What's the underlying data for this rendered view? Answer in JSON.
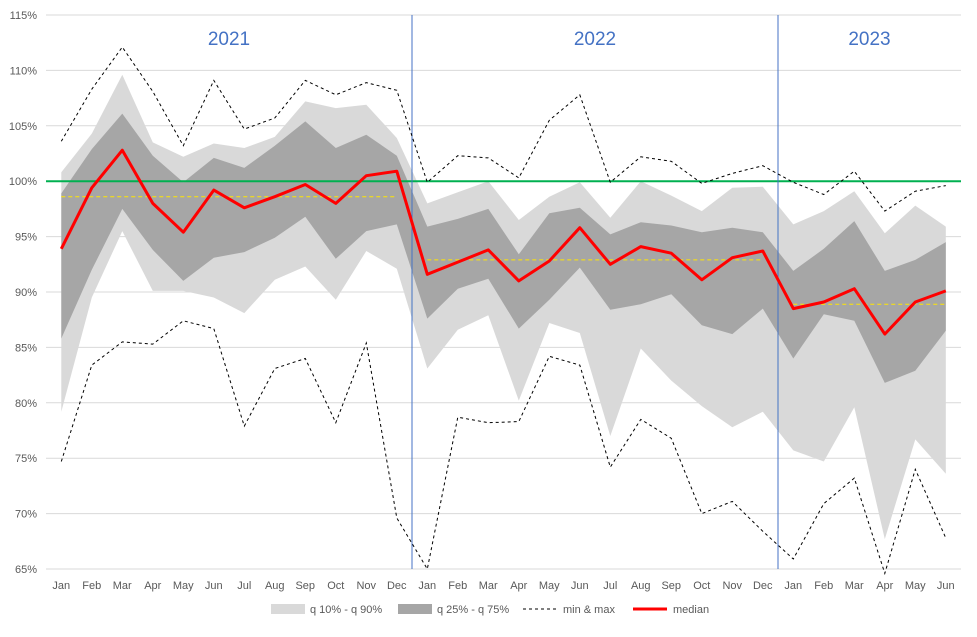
{
  "chart_data": {
    "type": "area",
    "x": [
      "Jan",
      "Feb",
      "Mar",
      "Apr",
      "May",
      "Jun",
      "Jul",
      "Aug",
      "Sep",
      "Oct",
      "Nov",
      "Dec",
      "Jan",
      "Feb",
      "Mar",
      "Apr",
      "May",
      "Jun",
      "Jul",
      "Aug",
      "Sep",
      "Oct",
      "Nov",
      "Dec",
      "Jan",
      "Feb",
      "Mar",
      "Apr",
      "May",
      "Jun"
    ],
    "year_labels": [
      {
        "label": "2021",
        "start": 0,
        "end": 11
      },
      {
        "label": "2022",
        "start": 12,
        "end": 23
      },
      {
        "label": "2023",
        "start": 24,
        "end": 29
      }
    ],
    "y_ticks": [
      "65%",
      "70%",
      "75%",
      "80%",
      "85%",
      "90%",
      "95%",
      "100%",
      "105%",
      "110%",
      "115%"
    ],
    "ylim": [
      65,
      115
    ],
    "grid": "horizontal",
    "legend_position": "bottom",
    "bands": [
      {
        "name": "q 10% - q 90%",
        "color": "#d9d9d9",
        "lower": [
          79.2,
          89.5,
          95.5,
          90.1,
          90.1,
          89.5,
          88.1,
          91.1,
          92.3,
          89.3,
          93.7,
          92.1,
          83.1,
          86.6,
          87.9,
          80.2,
          87.2,
          86.3,
          77.0,
          84.9,
          82.0,
          79.7,
          77.8,
          79.2,
          75.7,
          74.7,
          79.6,
          67.7,
          76.7,
          73.6
        ],
        "upper": [
          100.8,
          104.3,
          109.6,
          103.5,
          102.2,
          103.4,
          103.0,
          104.0,
          107.2,
          106.6,
          106.9,
          103.9,
          98.0,
          99.0,
          100.0,
          96.5,
          98.6,
          99.9,
          96.7,
          100.0,
          98.7,
          97.3,
          99.4,
          99.5,
          96.1,
          97.3,
          99.1,
          95.3,
          97.8,
          95.9
        ]
      },
      {
        "name": "q 25% - q 75%",
        "color": "#a6a6a6",
        "lower": [
          85.8,
          92.0,
          97.5,
          93.8,
          91.0,
          93.1,
          93.6,
          94.9,
          96.8,
          93.0,
          95.5,
          96.1,
          87.6,
          90.3,
          91.2,
          86.7,
          89.3,
          92.2,
          88.4,
          88.9,
          89.8,
          87.0,
          86.2,
          88.5,
          84.0,
          88.0,
          87.4,
          81.8,
          82.9,
          86.5
        ],
        "upper": [
          98.9,
          102.9,
          106.1,
          102.3,
          99.9,
          102.1,
          101.2,
          103.2,
          105.4,
          103.0,
          104.2,
          102.3,
          95.9,
          96.6,
          97.5,
          93.4,
          97.1,
          97.6,
          95.2,
          96.3,
          96.0,
          95.4,
          95.8,
          95.4,
          91.9,
          93.9,
          96.4,
          91.9,
          92.9,
          94.5
        ]
      }
    ],
    "series": [
      {
        "name": "min & max",
        "color": "#000000",
        "style": "dashed",
        "min": [
          74.7,
          83.4,
          85.5,
          85.3,
          87.4,
          86.7,
          77.9,
          83.1,
          84.0,
          78.2,
          85.4,
          69.6,
          65.0,
          78.7,
          78.2,
          78.3,
          84.2,
          83.4,
          74.2,
          78.5,
          76.8,
          70.0,
          71.1,
          68.4,
          65.9,
          70.9,
          73.2,
          64.6,
          74.0,
          67.8
        ],
        "max": [
          103.6,
          108.3,
          112.1,
          108.1,
          103.2,
          109.1,
          104.7,
          105.7,
          109.1,
          107.8,
          108.9,
          108.2,
          99.9,
          102.3,
          102.1,
          100.3,
          105.5,
          107.8,
          99.9,
          102.2,
          101.8,
          99.8,
          100.7,
          101.4,
          99.9,
          98.8,
          100.9,
          97.3,
          99.1,
          99.6
        ]
      },
      {
        "name": "median",
        "color": "#ff0000",
        "values": [
          93.9,
          99.4,
          102.8,
          98.0,
          95.4,
          99.2,
          97.6,
          98.6,
          99.7,
          98.0,
          100.5,
          100.9,
          91.6,
          92.7,
          93.8,
          91.0,
          92.8,
          95.8,
          92.5,
          94.1,
          93.5,
          91.1,
          93.1,
          93.7,
          88.5,
          89.1,
          90.3,
          86.2,
          89.1,
          90.1
        ]
      }
    ],
    "reference_lines": [
      {
        "value": 100,
        "color": "#00b050"
      },
      {
        "value": 98.6,
        "color": "#ffe600",
        "from": 0,
        "to": 11
      },
      {
        "value": 92.9,
        "color": "#ffe600",
        "from": 12,
        "to": 23
      },
      {
        "value": 88.9,
        "color": "#ffe600",
        "from": 24,
        "to": 29
      }
    ],
    "separators": [
      11.5,
      23.5
    ],
    "legend": [
      "q 10% - q 90%",
      "q 25% - q 75%",
      "min & max",
      "median"
    ]
  }
}
